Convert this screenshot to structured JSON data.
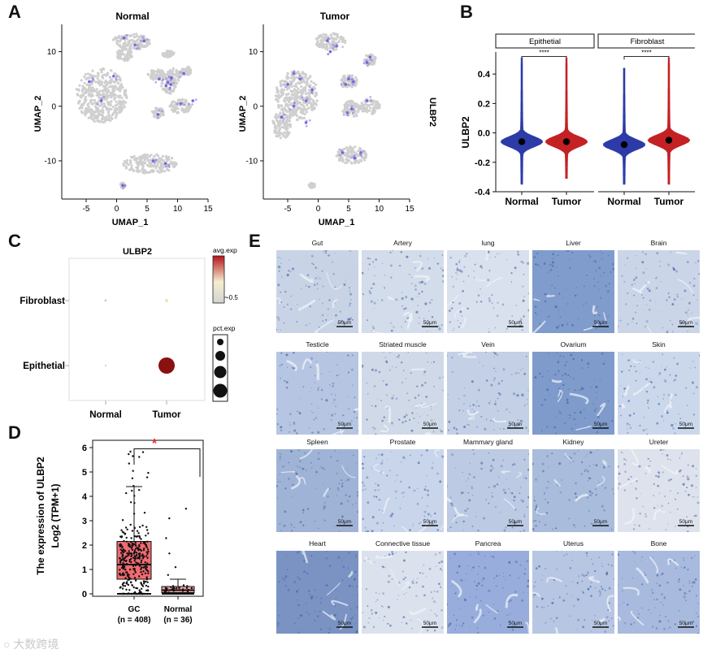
{
  "panels": {
    "A": {
      "letter": "A",
      "left_title": "Normal",
      "right_title": "Tumor",
      "xlabel": "UMAP_1",
      "ylabel": "UMAP_2",
      "gene_label": "ULBP2",
      "xticks": [
        "-5",
        "0",
        "5",
        "10",
        "15"
      ],
      "yticks": [
        "10",
        "0",
        "-10"
      ]
    },
    "B": {
      "letter": "B",
      "facets": [
        "Epithetial",
        "Fibroblast"
      ],
      "sig": "****",
      "ylabel": "ULBP2",
      "yticks": [
        "0.4",
        "0.2",
        "0.0",
        "-0.2",
        "-0.4"
      ],
      "groups": [
        "Normal",
        "Tumor"
      ]
    },
    "C": {
      "letter": "C",
      "title": "ULBP2",
      "rows": [
        "Fibroblast",
        "Epithetial"
      ],
      "cols": [
        "Normal",
        "Tumor"
      ],
      "legend_color_title": "avg.exp",
      "legend_color_tick": "-0.5",
      "legend_size_title": "pct.exp"
    },
    "D": {
      "letter": "D",
      "ylabel_main": "The expression of ULBP2",
      "ylabel_unit": "Log2 (TPM+1)",
      "yticks": [
        "0",
        "1",
        "2",
        "3",
        "4",
        "5",
        "6"
      ],
      "groups": [
        {
          "name": "GC",
          "n": "(n = 408)"
        },
        {
          "name": "Normal",
          "n": "(n = 36)"
        }
      ],
      "sig": "*"
    },
    "E": {
      "letter": "E",
      "scale_bar": "50μm",
      "tissues": [
        "Gut",
        "Artery",
        "lung",
        "Liver",
        "Brain",
        "Testicle",
        "Striated muscle",
        "Vein",
        "Ovarium",
        "Skin",
        "Spleen",
        "Prostate",
        "Mammary gland",
        "Kidney",
        "Ureter",
        "Heart",
        "Connective tissue",
        "Pancrea",
        "Uterus",
        "Bone"
      ]
    }
  },
  "chart_data": [
    {
      "type": "scatter",
      "title": "Normal",
      "xlabel": "UMAP_1",
      "ylabel": "UMAP_2",
      "xlim": [
        -9,
        15
      ],
      "ylim": [
        -17,
        15
      ],
      "color_by": "ULBP2",
      "clusters": [
        {
          "x": -2.5,
          "y": 2,
          "rx": 4.2,
          "ry": 5
        },
        {
          "x": 2.5,
          "y": 11.8,
          "rx": 3.2,
          "ry": 1.5
        },
        {
          "x": 1.3,
          "y": 9.5,
          "rx": 1.3,
          "ry": 1.2
        },
        {
          "x": 6.5,
          "y": 5.8,
          "rx": 1.4,
          "ry": 1.0
        },
        {
          "x": 8.5,
          "y": 4.0,
          "rx": 1.2,
          "ry": 1.8
        },
        {
          "x": 10.5,
          "y": 0,
          "rx": 1.8,
          "ry": 1.3
        },
        {
          "x": 5.5,
          "y": -10.5,
          "rx": 4.5,
          "ry": 1.8
        },
        {
          "x": 11.5,
          "y": 6.5,
          "rx": 0.8,
          "ry": 0.8
        },
        {
          "x": 8.5,
          "y": 9.5,
          "rx": 1.0,
          "ry": 0.7
        },
        {
          "x": 6.8,
          "y": -1.2,
          "rx": 1.0,
          "ry": 0.9
        },
        {
          "x": 1,
          "y": -14.5,
          "rx": 0.4,
          "ry": 0.5
        },
        {
          "x": 9.5,
          "y": 5.5,
          "rx": 1.2,
          "ry": 1.6
        }
      ],
      "high_expression_points": [
        {
          "x": 8.4,
          "y": 4.4
        },
        {
          "x": 8.9,
          "y": 4.0
        },
        {
          "x": 8.1,
          "y": 3.8
        },
        {
          "x": 9.0,
          "y": 5.2
        },
        {
          "x": 1.2,
          "y": 12.5
        },
        {
          "x": 3.0,
          "y": 11.2
        },
        {
          "x": 4.5,
          "y": 12.0
        },
        {
          "x": -4.5,
          "y": 4.5
        },
        {
          "x": -2.5,
          "y": 1.0
        },
        {
          "x": -0.5,
          "y": 5.5
        },
        {
          "x": 10.5,
          "y": 0.5
        },
        {
          "x": 12.5,
          "y": 1.0
        },
        {
          "x": 11.0,
          "y": 6.0
        },
        {
          "x": 6.0,
          "y": -10.0
        },
        {
          "x": 8.0,
          "y": -10.5
        },
        {
          "x": 1.0,
          "y": -14.5
        },
        {
          "x": 6.8,
          "y": -1.5
        },
        {
          "x": 7.0,
          "y": 5.0
        }
      ]
    },
    {
      "type": "scatter",
      "title": "Tumor",
      "xlabel": "UMAP_1",
      "ylabel": "UMAP_2",
      "xlim": [
        -9,
        15
      ],
      "ylim": [
        -17,
        15
      ],
      "color_by": "ULBP2",
      "clusters": [
        {
          "x": -3.5,
          "y": 2,
          "rx": 3.5,
          "ry": 4.5
        },
        {
          "x": -6,
          "y": -3.5,
          "rx": 1.5,
          "ry": 2.5
        },
        {
          "x": 2,
          "y": 11.8,
          "rx": 2.5,
          "ry": 1.6
        },
        {
          "x": 5,
          "y": 4.5,
          "rx": 1.5,
          "ry": 1.2
        },
        {
          "x": 5.5,
          "y": -0.5,
          "rx": 1.5,
          "ry": 1.5
        },
        {
          "x": 8.5,
          "y": 8.5,
          "rx": 1.0,
          "ry": 1.0
        },
        {
          "x": 8.5,
          "y": 0,
          "rx": 1.6,
          "ry": 1.5
        },
        {
          "x": 5.5,
          "y": -9,
          "rx": 2.5,
          "ry": 1.6
        },
        {
          "x": -1,
          "y": -14.5,
          "rx": 0.5,
          "ry": 0.5
        }
      ],
      "high_expression_points": [
        {
          "x": -5,
          "y": 4
        },
        {
          "x": -3,
          "y": 5
        },
        {
          "x": -2,
          "y": 1
        },
        {
          "x": -4,
          "y": 0
        },
        {
          "x": -6,
          "y": -2
        },
        {
          "x": -1,
          "y": 3
        },
        {
          "x": -4,
          "y": 6
        },
        {
          "x": -2,
          "y": -3
        },
        {
          "x": 1.5,
          "y": 12
        },
        {
          "x": 3,
          "y": 11
        },
        {
          "x": 2,
          "y": 10
        },
        {
          "x": 5,
          "y": 5
        },
        {
          "x": 4.5,
          "y": 4
        },
        {
          "x": 5.8,
          "y": 4.5
        },
        {
          "x": 8.5,
          "y": 9
        },
        {
          "x": 8,
          "y": 8
        },
        {
          "x": 5.5,
          "y": -0.5
        },
        {
          "x": 4.8,
          "y": -1.2
        },
        {
          "x": 4,
          "y": -8.5
        },
        {
          "x": 6,
          "y": -9.5
        },
        {
          "x": 7,
          "y": -8.5
        },
        {
          "x": 8,
          "y": 1
        }
      ]
    },
    {
      "type": "violin",
      "ylabel": "ULBP2",
      "ylim": [
        -0.4,
        0.55
      ],
      "facets": [
        {
          "name": "Epithetial",
          "groups": [
            {
              "name": "Normal",
              "color": "#2c3ba8",
              "median": -0.06,
              "min": -0.35,
              "max": 0.51
            },
            {
              "name": "Tumor",
              "color": "#c42124",
              "median": -0.06,
              "min": -0.31,
              "max": 0.51
            }
          ]
        },
        {
          "name": "Fibroblast",
          "groups": [
            {
              "name": "Normal",
              "color": "#2c3ba8",
              "median": -0.08,
              "min": -0.35,
              "max": 0.44
            },
            {
              "name": "Tumor",
              "color": "#c42124",
              "median": -0.05,
              "min": -0.35,
              "max": 0.51
            }
          ]
        }
      ],
      "significance": "****"
    },
    {
      "type": "dot",
      "title": "ULBP2",
      "x": [
        "Normal",
        "Tumor"
      ],
      "y": [
        "Fibroblast",
        "Epithetial"
      ],
      "points": [
        {
          "x": "Normal",
          "y": "Fibroblast",
          "pct": 0.05,
          "color": "#c8c8c8"
        },
        {
          "x": "Tumor",
          "y": "Fibroblast",
          "pct": 0.12,
          "color": "#f0e4b8"
        },
        {
          "x": "Normal",
          "y": "Epithetial",
          "pct": 0.01,
          "color": "#cccccc"
        },
        {
          "x": "Tumor",
          "y": "Epithetial",
          "pct": 1.0,
          "color": "#8b1010"
        }
      ],
      "color_scale": {
        "title": "avg.exp",
        "high": "#b5121b",
        "mid": "#f5eed0",
        "low": "#d3d3d3",
        "tick": "-0.5"
      },
      "size_legend_title": "pct.exp"
    },
    {
      "type": "box",
      "ylabel": "The expression of ULBP2 Log2 (TPM+1)",
      "ylim": [
        -0.1,
        6.3
      ],
      "groups": [
        {
          "name": "GC",
          "n": 408,
          "q1": 0.6,
          "median": 1.2,
          "q3": 2.15,
          "whisker_low": 0.0,
          "whisker_high": 4.4,
          "color": "#f26a70"
        },
        {
          "name": "Normal",
          "n": 36,
          "q1": 0.05,
          "median": 0.15,
          "q3": 0.3,
          "whisker_low": 0.0,
          "whisker_high": 0.6,
          "color": "#f4a3a3"
        }
      ],
      "significance": "*"
    }
  ]
}
